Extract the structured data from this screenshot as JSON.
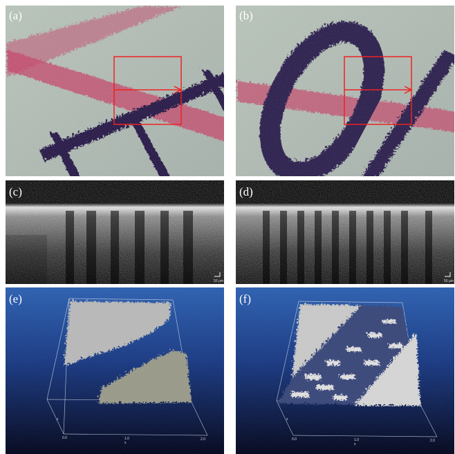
{
  "panels": [
    {
      "label": "(a)"
    },
    {
      "label": "(b)"
    },
    {
      "label": "(c)",
      "scale_bar": "50 μm"
    },
    {
      "label": "(d)",
      "scale_bar": "50 μm"
    },
    {
      "label": "(e)",
      "axis_z": "z",
      "axis_x": "x",
      "ticks": [
        "0.0",
        "1.0",
        "2.0"
      ]
    },
    {
      "label": "(f)",
      "axis_z": "z",
      "axis_x": "x",
      "ticks": [
        "0.0",
        "1.0",
        "2.0"
      ]
    }
  ]
}
